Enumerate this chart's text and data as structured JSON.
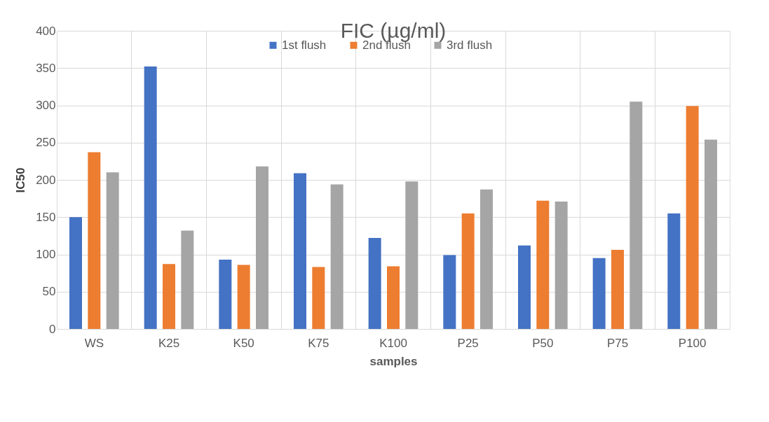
{
  "chart_data": {
    "type": "bar",
    "title": "FIC (µg/ml)",
    "xlabel": "samples",
    "ylabel": "IC50",
    "categories": [
      "WS",
      "K25",
      "K50",
      "K75",
      "K100",
      "P25",
      "P50",
      "P75",
      "P100"
    ],
    "series": [
      {
        "name": "1st flush",
        "color": "#4472c4",
        "values": [
          150,
          352,
          93,
          209,
          122,
          99,
          112,
          95,
          155
        ]
      },
      {
        "name": "2nd flush",
        "color": "#ed7d31",
        "values": [
          237,
          87,
          86,
          83,
          84,
          155,
          172,
          106,
          299
        ]
      },
      {
        "name": "3rd flush",
        "color": "#a5a5a5",
        "values": [
          210,
          132,
          218,
          194,
          198,
          187,
          171,
          305,
          254
        ]
      }
    ],
    "ylim": [
      0,
      400
    ],
    "yticks": [
      0,
      50,
      100,
      150,
      200,
      250,
      300,
      350,
      400
    ],
    "grid": true,
    "legend": "top"
  }
}
